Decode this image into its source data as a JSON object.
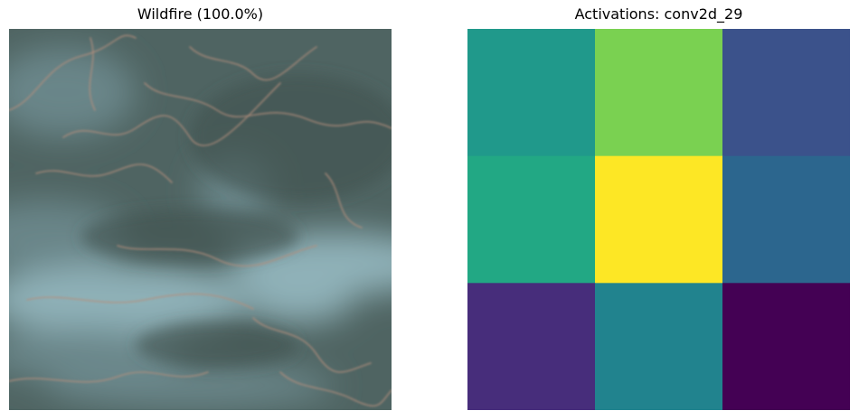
{
  "chart_data": [
    {
      "type": "image",
      "title": "Wildfire (100.0%)",
      "axis": "off",
      "palette": {
        "base": "#4f6462",
        "smoke": "#8fb1b8",
        "haze": "#6f8d92",
        "trail": "#b48f7c"
      }
    },
    {
      "type": "heatmap",
      "title": "Activations: conv2d_29",
      "colormap": "viridis",
      "axis": "off",
      "rows": 3,
      "cols": 3,
      "values": [
        [
          0.55,
          0.78,
          0.22
        ],
        [
          0.62,
          1.0,
          0.32
        ],
        [
          0.08,
          0.45,
          0.0
        ]
      ],
      "colors": [
        [
          "#20998b",
          "#7ad151",
          "#3b528b"
        ],
        [
          "#22a884",
          "#fde725",
          "#2c668e"
        ],
        [
          "#472d7b",
          "#21838e",
          "#440154"
        ]
      ]
    }
  ]
}
